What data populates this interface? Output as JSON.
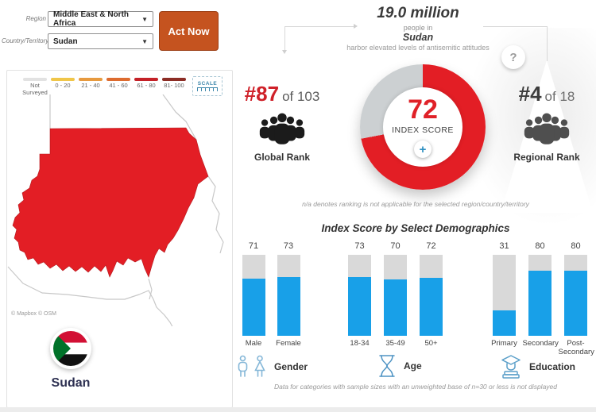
{
  "filters": {
    "region_label": "Region",
    "region_value": "Middle East & North Africa",
    "country_label": "Country/Territory",
    "country_value": "Sudan",
    "act_now": "Act Now"
  },
  "legend": {
    "scale_label": "SCALE",
    "items": [
      {
        "label": "Not Surveyed",
        "color": "#e2e2e2"
      },
      {
        "label": "0 - 20",
        "color": "#f0c649"
      },
      {
        "label": "21 - 40",
        "color": "#e79a3f"
      },
      {
        "label": "41 - 60",
        "color": "#dd6b2f"
      },
      {
        "label": "61 - 80",
        "color": "#c42127"
      },
      {
        "label": "81- 100",
        "color": "#8c2d25"
      }
    ]
  },
  "map": {
    "attribution": "© Mapbox © OSM",
    "country_fill": "#e31e25",
    "border_color": "#c8c8c8",
    "flag_label": "Sudan"
  },
  "headline": {
    "population": "19.0 million",
    "prefix": "people in",
    "country": "Sudan",
    "suffix": "harbor elevated levels of antisemitic attitudes",
    "help": "?"
  },
  "ranks": {
    "global": {
      "rank": "#87",
      "of": "of 103",
      "label": "Global Rank"
    },
    "regional": {
      "rank": "#4",
      "of": "of 18",
      "label": "Regional Rank"
    }
  },
  "score": {
    "value": "72",
    "caption": "INDEX SCORE",
    "expand": "+",
    "percent": 72,
    "arc_color": "#e31e25",
    "rest_color": "#ccd0d2"
  },
  "notes": {
    "na": "n/a denotes ranking is not applicable for the selected region/country/territory",
    "sample": "Data for categories with sample sizes with an unweighted base of n=30 or less is not displayed"
  },
  "chart_data": {
    "type": "bar",
    "title": "Index Score by Select Demographics",
    "ylim": [
      0,
      100
    ],
    "bar_color": "#18a0e8",
    "track_color": "#d9d9d9",
    "groups": [
      {
        "name": "Gender",
        "categories": [
          "Male",
          "Female"
        ],
        "values": [
          71,
          73
        ]
      },
      {
        "name": "Age",
        "categories": [
          "18-34",
          "35-49",
          "50+"
        ],
        "values": [
          73,
          70,
          72
        ]
      },
      {
        "name": "Education",
        "categories": [
          "Primary",
          "Secondary",
          "Post-Secondary"
        ],
        "values": [
          31,
          80,
          80
        ]
      }
    ]
  }
}
